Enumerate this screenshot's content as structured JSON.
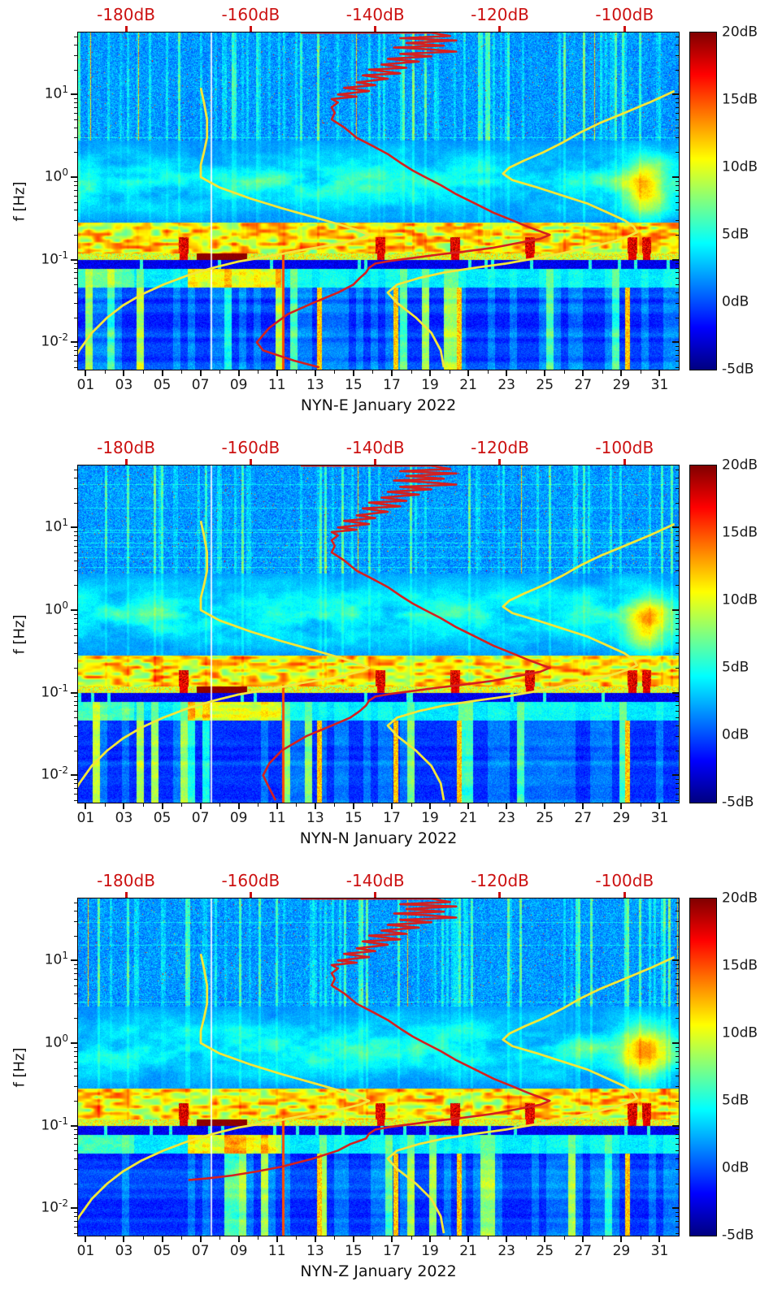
{
  "chart_data": {
    "type": "heatmap",
    "figure_kind": "seismic-noise-spectrograms",
    "panels": [
      {
        "station_channel": "NYN-E",
        "xlabel": "NYN-E January 2022",
        "median_psd_hz_db": [
          [
            56,
            -152
          ],
          [
            56,
            -131
          ],
          [
            51,
            -128
          ],
          [
            48,
            -136
          ],
          [
            45,
            -127
          ],
          [
            42,
            -135
          ],
          [
            39,
            -129
          ],
          [
            37,
            -137
          ],
          [
            35,
            -131
          ],
          [
            33,
            -127
          ],
          [
            31,
            -136
          ],
          [
            29,
            -131
          ],
          [
            27,
            -138
          ],
          [
            25,
            -133
          ],
          [
            23,
            -139
          ],
          [
            21,
            -135
          ],
          [
            20,
            -141
          ],
          [
            18,
            -136
          ],
          [
            17,
            -142
          ],
          [
            15.5,
            -138
          ],
          [
            14,
            -143
          ],
          [
            13,
            -140
          ],
          [
            12,
            -145
          ],
          [
            11,
            -141
          ],
          [
            10,
            -146
          ],
          [
            9.4,
            -143
          ],
          [
            8.8,
            -147
          ],
          [
            8,
            -146
          ],
          [
            7,
            -147
          ],
          [
            6,
            -146.5
          ],
          [
            5,
            -147
          ],
          [
            4,
            -145
          ],
          [
            3,
            -143
          ],
          [
            2.4,
            -140.5
          ],
          [
            1.9,
            -138
          ],
          [
            1.5,
            -136
          ],
          [
            1.2,
            -134
          ],
          [
            1,
            -132
          ],
          [
            0.8,
            -129.5
          ],
          [
            0.62,
            -127
          ],
          [
            0.48,
            -124
          ],
          [
            0.37,
            -121
          ],
          [
            0.3,
            -118
          ],
          [
            0.25,
            -115.5
          ],
          [
            0.22,
            -113.5
          ],
          [
            0.2,
            -112
          ],
          [
            0.18,
            -113.5
          ],
          [
            0.16,
            -117
          ],
          [
            0.14,
            -121
          ],
          [
            0.125,
            -126
          ],
          [
            0.115,
            -130
          ],
          [
            0.105,
            -134
          ],
          [
            0.097,
            -137.5
          ],
          [
            0.09,
            -140
          ],
          [
            0.08,
            -141
          ],
          [
            0.07,
            -141.5
          ],
          [
            0.06,
            -142.5
          ],
          [
            0.05,
            -143.5
          ],
          [
            0.04,
            -146
          ],
          [
            0.03,
            -150
          ],
          [
            0.022,
            -154
          ],
          [
            0.015,
            -157
          ],
          [
            0.01,
            -159
          ],
          [
            0.008,
            -158
          ],
          [
            0.006,
            -153
          ],
          [
            0.005,
            -149
          ]
        ]
      },
      {
        "station_channel": "NYN-N",
        "xlabel": "NYN-N January 2022",
        "median_psd_hz_db": [
          [
            56,
            -152
          ],
          [
            56,
            -131
          ],
          [
            51,
            -128
          ],
          [
            48,
            -136
          ],
          [
            45,
            -127
          ],
          [
            42,
            -135
          ],
          [
            39,
            -129
          ],
          [
            37,
            -137
          ],
          [
            35,
            -131
          ],
          [
            33,
            -127
          ],
          [
            31,
            -136
          ],
          [
            29,
            -131
          ],
          [
            27,
            -138
          ],
          [
            25,
            -133
          ],
          [
            23,
            -139
          ],
          [
            21,
            -135
          ],
          [
            20,
            -141
          ],
          [
            18,
            -136
          ],
          [
            17,
            -142
          ],
          [
            15.5,
            -138
          ],
          [
            14,
            -143
          ],
          [
            13,
            -140
          ],
          [
            12,
            -145
          ],
          [
            11,
            -141
          ],
          [
            10,
            -146
          ],
          [
            9.4,
            -143
          ],
          [
            8.8,
            -147
          ],
          [
            8,
            -146
          ],
          [
            7,
            -147
          ],
          [
            6,
            -146.5
          ],
          [
            5,
            -147
          ],
          [
            4,
            -145
          ],
          [
            3,
            -143
          ],
          [
            2.4,
            -140.5
          ],
          [
            1.9,
            -138
          ],
          [
            1.5,
            -136
          ],
          [
            1.2,
            -134
          ],
          [
            1,
            -132
          ],
          [
            0.8,
            -129.5
          ],
          [
            0.62,
            -127
          ],
          [
            0.48,
            -124
          ],
          [
            0.37,
            -121
          ],
          [
            0.3,
            -118
          ],
          [
            0.25,
            -115.5
          ],
          [
            0.22,
            -113.5
          ],
          [
            0.2,
            -112
          ],
          [
            0.18,
            -113.5
          ],
          [
            0.16,
            -117
          ],
          [
            0.14,
            -121
          ],
          [
            0.125,
            -126
          ],
          [
            0.115,
            -130
          ],
          [
            0.105,
            -134
          ],
          [
            0.097,
            -137.5
          ],
          [
            0.09,
            -140
          ],
          [
            0.08,
            -141
          ],
          [
            0.07,
            -141.5
          ],
          [
            0.06,
            -142.5
          ],
          [
            0.05,
            -144
          ],
          [
            0.04,
            -147
          ],
          [
            0.03,
            -151
          ],
          [
            0.02,
            -155
          ],
          [
            0.014,
            -157
          ],
          [
            0.01,
            -158
          ],
          [
            0.007,
            -157
          ],
          [
            0.005,
            -156
          ]
        ]
      },
      {
        "station_channel": "NYN-Z",
        "xlabel": "NYN-Z January 2022",
        "median_psd_hz_db": [
          [
            56,
            -152
          ],
          [
            56,
            -131
          ],
          [
            51,
            -128
          ],
          [
            48,
            -136
          ],
          [
            45,
            -127
          ],
          [
            42,
            -135
          ],
          [
            39,
            -129
          ],
          [
            37,
            -137
          ],
          [
            35,
            -131
          ],
          [
            33,
            -127
          ],
          [
            31,
            -136
          ],
          [
            29,
            -131
          ],
          [
            27,
            -138
          ],
          [
            25,
            -133
          ],
          [
            23,
            -139
          ],
          [
            21,
            -135
          ],
          [
            20,
            -141
          ],
          [
            18,
            -136
          ],
          [
            17,
            -142
          ],
          [
            15.5,
            -138
          ],
          [
            14,
            -143
          ],
          [
            13,
            -140
          ],
          [
            12,
            -145
          ],
          [
            11,
            -141
          ],
          [
            10,
            -146
          ],
          [
            9.4,
            -143
          ],
          [
            8.8,
            -147
          ],
          [
            8,
            -146
          ],
          [
            7,
            -147
          ],
          [
            6,
            -146.5
          ],
          [
            5,
            -147
          ],
          [
            4,
            -145
          ],
          [
            3,
            -143
          ],
          [
            2.4,
            -140.5
          ],
          [
            1.9,
            -138
          ],
          [
            1.5,
            -136
          ],
          [
            1.2,
            -134
          ],
          [
            1,
            -132
          ],
          [
            0.8,
            -129.5
          ],
          [
            0.62,
            -127
          ],
          [
            0.48,
            -124
          ],
          [
            0.37,
            -121
          ],
          [
            0.3,
            -118
          ],
          [
            0.25,
            -115.5
          ],
          [
            0.22,
            -113.5
          ],
          [
            0.2,
            -112
          ],
          [
            0.18,
            -113.5
          ],
          [
            0.16,
            -117
          ],
          [
            0.14,
            -121
          ],
          [
            0.125,
            -126
          ],
          [
            0.115,
            -130
          ],
          [
            0.105,
            -134
          ],
          [
            0.097,
            -137.5
          ],
          [
            0.09,
            -140
          ],
          [
            0.08,
            -141
          ],
          [
            0.07,
            -141.5
          ],
          [
            0.06,
            -144
          ],
          [
            0.05,
            -146
          ],
          [
            0.04,
            -150
          ],
          [
            0.032,
            -155
          ],
          [
            0.028,
            -159
          ],
          [
            0.025,
            -163
          ],
          [
            0.023,
            -167
          ],
          [
            0.022,
            -170
          ]
        ]
      }
    ],
    "x": {
      "tick_labels": [
        "01",
        "03",
        "05",
        "07",
        "09",
        "11",
        "13",
        "15",
        "17",
        "19",
        "21",
        "23",
        "25",
        "27",
        "29",
        "31"
      ],
      "tick_values_day": [
        1,
        3,
        5,
        7,
        9,
        11,
        13,
        15,
        17,
        19,
        21,
        23,
        25,
        27,
        29,
        31
      ],
      "range_days": [
        0.6,
        32
      ]
    },
    "y": {
      "label": "f [Hz]",
      "scale": "log",
      "range_hz": [
        0.0047,
        56
      ],
      "tick_values_hz": [
        10,
        1,
        0.1,
        0.01
      ],
      "tick_base": "10",
      "tick_exponents": [
        "1",
        "0",
        "-1",
        "-2"
      ]
    },
    "top_axis": {
      "tick_labels": [
        "-180dB",
        "-160dB",
        "-140dB",
        "-120dB",
        "-100dB"
      ],
      "tick_values_db": [
        -180,
        -160,
        -140,
        -120,
        -100
      ],
      "range_db": [
        -187.7,
        -91.3
      ],
      "color": "#cc1111"
    },
    "colorbar": {
      "tick_labels": [
        "20dB",
        "15dB",
        "10dB",
        "5dB",
        "0dB",
        "-5dB"
      ],
      "tick_values_db": [
        20,
        15,
        10,
        5,
        0,
        -5
      ],
      "range_db": [
        -5,
        20
      ],
      "colormap": "jet"
    },
    "overlays": {
      "median_color": "#d42020",
      "model_color": "#f2e63a",
      "low_noise_model_hz_db": [
        [
          12,
          -168
        ],
        [
          8,
          -167.5
        ],
        [
          5,
          -167
        ],
        [
          3,
          -167
        ],
        [
          2,
          -167.5
        ],
        [
          1.4,
          -168
        ],
        [
          1,
          -168
        ],
        [
          0.75,
          -165
        ],
        [
          0.55,
          -160
        ],
        [
          0.42,
          -155
        ],
        [
          0.33,
          -150
        ],
        [
          0.27,
          -146
        ],
        [
          0.23,
          -143
        ],
        [
          0.2,
          -141
        ],
        [
          0.18,
          -142.5
        ],
        [
          0.155,
          -146
        ],
        [
          0.13,
          -152
        ],
        [
          0.11,
          -157
        ],
        [
          0.095,
          -162
        ],
        [
          0.08,
          -166
        ],
        [
          0.065,
          -170
        ],
        [
          0.05,
          -174
        ],
        [
          0.038,
          -177.5
        ],
        [
          0.028,
          -180.5
        ],
        [
          0.02,
          -183
        ],
        [
          0.013,
          -185.5
        ],
        [
          0.008,
          -187.5
        ],
        [
          0.005,
          -189
        ]
      ],
      "high_noise_model_hz_db": [
        [
          11,
          -92
        ],
        [
          8,
          -96
        ],
        [
          6,
          -100
        ],
        [
          4.5,
          -104
        ],
        [
          3.5,
          -107
        ],
        [
          2.6,
          -110
        ],
        [
          2,
          -113
        ],
        [
          1.6,
          -116
        ],
        [
          1.3,
          -118.5
        ],
        [
          1.1,
          -119.5
        ],
        [
          0.92,
          -118
        ],
        [
          0.75,
          -114
        ],
        [
          0.6,
          -110
        ],
        [
          0.48,
          -106
        ],
        [
          0.38,
          -103
        ],
        [
          0.3,
          -100
        ],
        [
          0.25,
          -98.5
        ],
        [
          0.215,
          -98
        ],
        [
          0.19,
          -99.5
        ],
        [
          0.165,
          -102
        ],
        [
          0.14,
          -106
        ],
        [
          0.12,
          -110
        ],
        [
          0.105,
          -114
        ],
        [
          0.09,
          -119
        ],
        [
          0.08,
          -124
        ],
        [
          0.07,
          -129
        ],
        [
          0.06,
          -133
        ],
        [
          0.05,
          -136.5
        ],
        [
          0.04,
          -138
        ],
        [
          0.03,
          -136.5
        ],
        [
          0.02,
          -133.5
        ],
        [
          0.013,
          -131
        ],
        [
          0.008,
          -129.5
        ],
        [
          0.005,
          -129
        ]
      ]
    },
    "texture": {
      "microseism_band_hz": [
        0.1,
        0.28
      ],
      "dark_band_hz": [
        0.078,
        0.1
      ],
      "secondary_band_hz": [
        0.047,
        0.078
      ],
      "maroon_blob": {
        "day_range": [
          6.8,
          9.4
        ],
        "hz_range": [
          0.095,
          0.125
        ],
        "level_db": 19.3
      },
      "red_spot_days": [
        6.1,
        16.4,
        20.3,
        24.2,
        29.55,
        30.3
      ],
      "gap_days": [
        7.55
      ],
      "red_column_days": [
        11.3
      ],
      "orange_column_days": [
        13.2,
        17.2,
        20.5,
        29.3
      ],
      "bright_patch": {
        "day": 30.2,
        "hz": 0.7,
        "boost_db": 8
      }
    }
  }
}
